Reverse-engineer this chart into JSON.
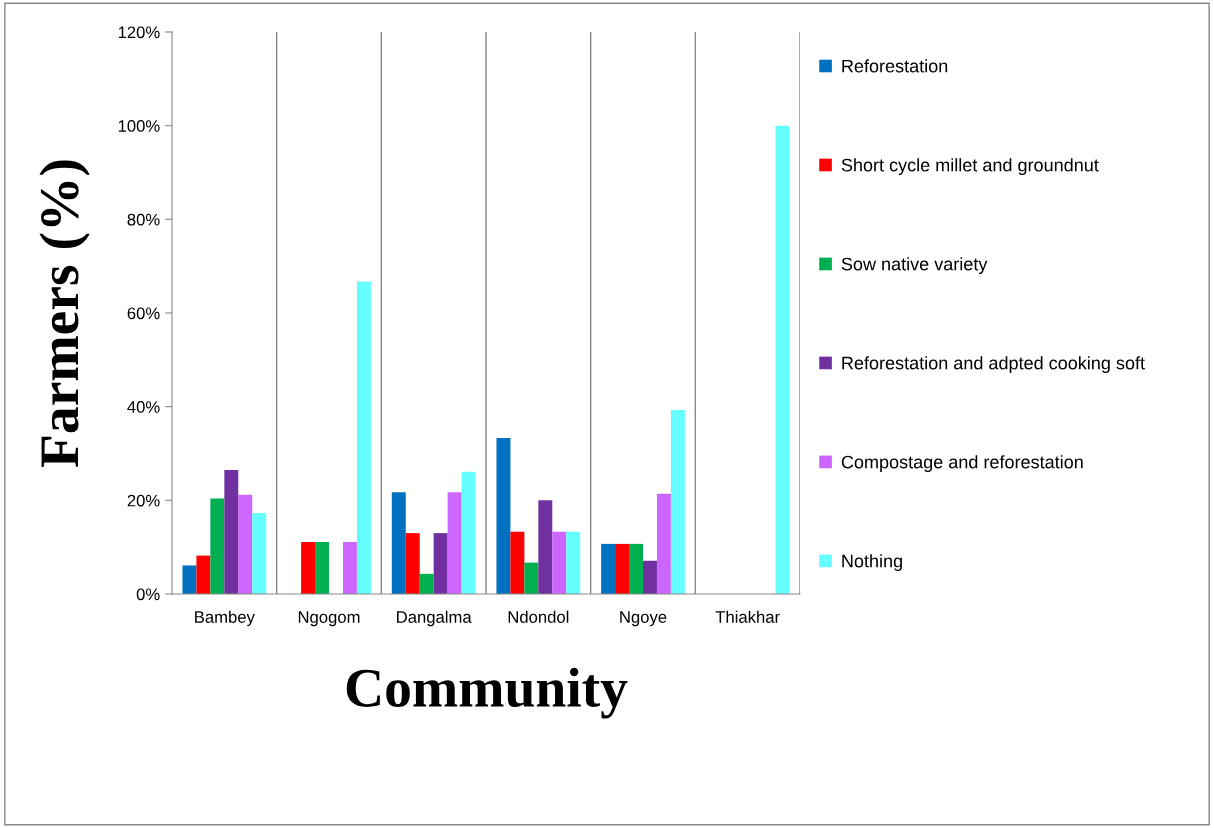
{
  "chart_data": {
    "type": "bar",
    "xlabel": "Community",
    "ylabel": "Farmers (%)",
    "categories": [
      "Bambey",
      "Ngogom",
      "Dangalma",
      "Ndondol",
      "Ngoye",
      "Thiakhar"
    ],
    "series": [
      {
        "name": "Reforestation",
        "color": "#0070c0",
        "values": [
          6.1,
          0,
          21.7,
          33.3,
          10.7,
          0
        ]
      },
      {
        "name": "Short cycle millet and groundnut",
        "color": "#ff0000",
        "values": [
          8.2,
          11.1,
          13.0,
          13.3,
          10.7,
          0
        ]
      },
      {
        "name": "Sow native variety",
        "color": "#00b050",
        "values": [
          20.4,
          11.1,
          4.3,
          6.7,
          10.7,
          0
        ]
      },
      {
        "name": "Reforestation and adpted cooking soft",
        "color": "#7030a0",
        "values": [
          26.5,
          0,
          13.0,
          20.0,
          7.1,
          0
        ]
      },
      {
        "name": "Compostage and reforestation",
        "color": "#cc66ff",
        "values": [
          21.2,
          11.1,
          21.7,
          13.3,
          21.4,
          0
        ]
      },
      {
        "name": "Nothing",
        "color": "#66ffff",
        "values": [
          17.3,
          66.7,
          26.1,
          13.3,
          39.3,
          100
        ]
      }
    ],
    "ylim": [
      0,
      120
    ],
    "yticks": [
      {
        "value": 0,
        "label": "0%"
      },
      {
        "value": 20,
        "label": "20%"
      },
      {
        "value": 40,
        "label": "40%"
      },
      {
        "value": 60,
        "label": "60%"
      },
      {
        "value": 80,
        "label": "80%"
      },
      {
        "value": 100,
        "label": "100%"
      },
      {
        "value": 120,
        "label": "120%"
      }
    ],
    "grid": "x",
    "legend": "right"
  }
}
